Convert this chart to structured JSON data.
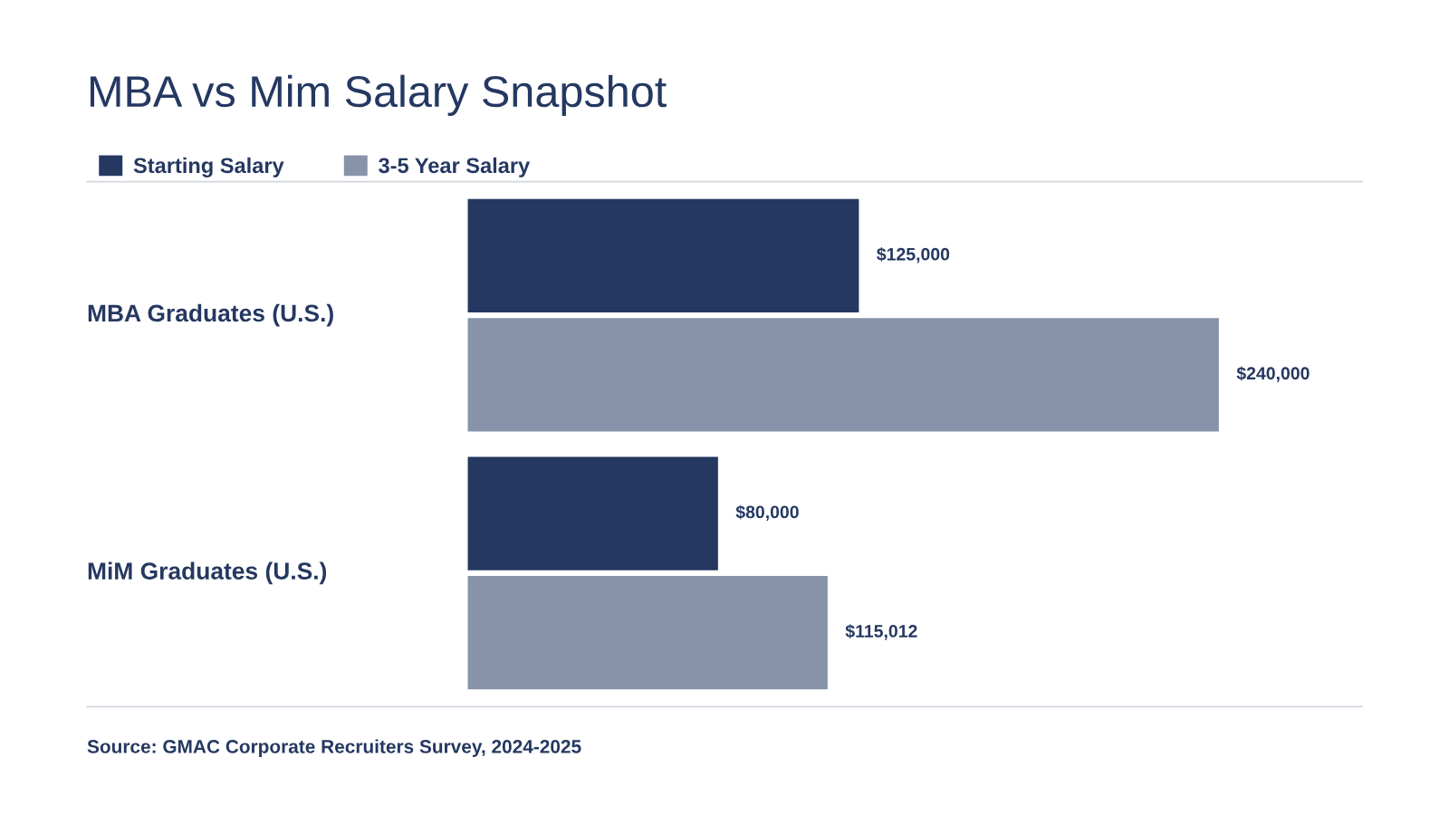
{
  "chart_data": {
    "type": "bar",
    "orientation": "horizontal",
    "title": "MBA vs Mim Salary Snapshot",
    "categories": [
      "MBA Graduates (U.S.)",
      "MiM Graduates (U.S.)"
    ],
    "series": [
      {
        "name": "Starting Salary",
        "color": "#253861",
        "values": [
          125000,
          80000
        ],
        "value_labels": [
          "$125,000",
          "$80,000"
        ]
      },
      {
        "name": "3-5 Year Salary",
        "color": "#8893aa",
        "values": [
          240000,
          115012
        ],
        "value_labels": [
          "$240,000",
          "$115,012"
        ]
      }
    ],
    "legend": "top left",
    "annotations": [
      "Source: GMAC Corporate Recruiters Survey, 2024-2025"
    ]
  }
}
